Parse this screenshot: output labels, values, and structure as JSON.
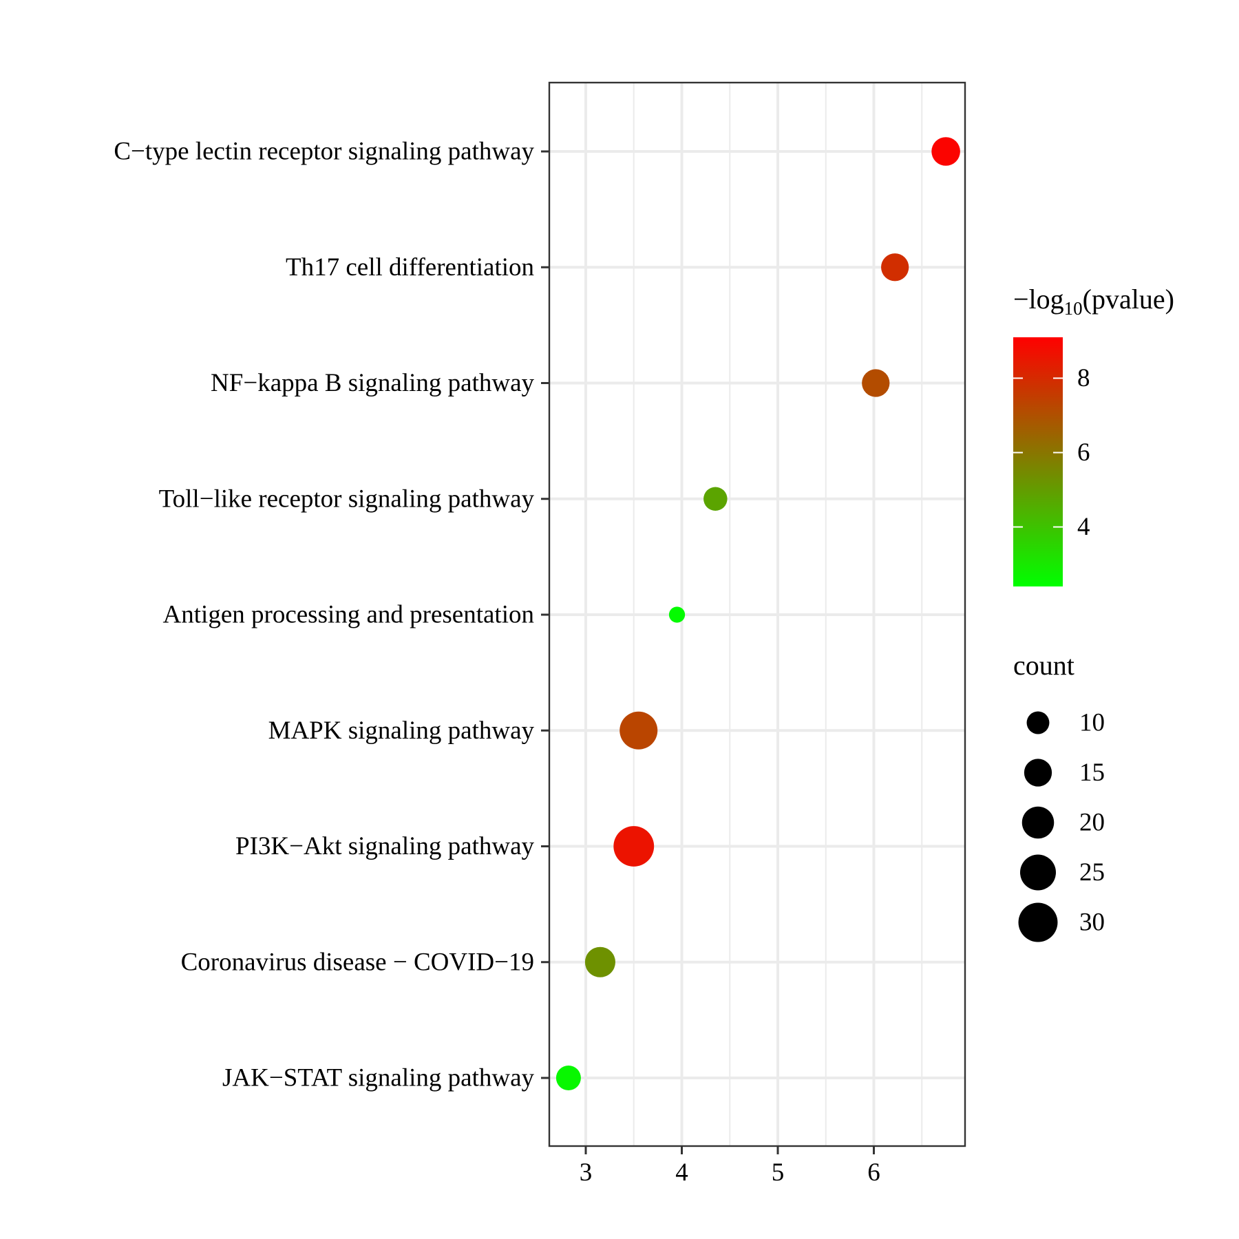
{
  "chart_data": {
    "type": "scatter",
    "title": "",
    "xlabel": "",
    "ylabel": "",
    "xlim": [
      2.62,
      6.95
    ],
    "x_ticks": [
      3,
      4,
      5,
      6
    ],
    "x_tick_labels": [
      "3",
      "4",
      "5",
      "6"
    ],
    "grid": true,
    "legend_position": "right",
    "categories": [
      "C−type lectin receptor signaling pathway",
      "Th17 cell differentiation",
      "NF−kappa B signaling pathway",
      "Toll−like receptor signaling pathway",
      "Antigen processing and presentation",
      "MAPK signaling pathway",
      "PI3K−Akt signaling pathway",
      "Coronavirus disease − COVID−19",
      "JAK−STAT signaling pathway"
    ],
    "points": [
      {
        "category": "C−type lectin receptor signaling pathway",
        "x": 6.75,
        "count": 16,
        "neg_log10_pvalue": 9.0
      },
      {
        "category": "Th17 cell differentiation",
        "x": 6.22,
        "count": 15,
        "neg_log10_pvalue": 7.9
      },
      {
        "category": "NF−kappa B signaling pathway",
        "x": 6.02,
        "count": 15,
        "neg_log10_pvalue": 7.1
      },
      {
        "category": "Toll−like receptor signaling pathway",
        "x": 4.35,
        "count": 11,
        "neg_log10_pvalue": 4.8
      },
      {
        "category": "Antigen processing and presentation",
        "x": 3.95,
        "count": 5,
        "neg_log10_pvalue": 2.5
      },
      {
        "category": "MAPK signaling pathway",
        "x": 3.55,
        "count": 28,
        "neg_log10_pvalue": 7.3
      },
      {
        "category": "PI3K−Akt signaling pathway",
        "x": 3.5,
        "count": 32,
        "neg_log10_pvalue": 8.6
      },
      {
        "category": "Coronavirus disease − COVID−19",
        "x": 3.15,
        "count": 18,
        "neg_log10_pvalue": 5.3
      },
      {
        "category": "JAK−STAT signaling pathway",
        "x": 2.82,
        "count": 12,
        "neg_log10_pvalue": 2.6
      }
    ],
    "color_legend": {
      "title_main": "−log",
      "title_sub": "10",
      "title_tail": "(pvalue)",
      "min": 2.4,
      "max": 9.1,
      "ticks": [
        4,
        6,
        8
      ],
      "tick_labels": [
        "4",
        "6",
        "8"
      ],
      "low_color": "#00ff00",
      "high_color": "#ff0000"
    },
    "size_legend": {
      "title": "count",
      "values": [
        10,
        15,
        20,
        25,
        30
      ],
      "labels": [
        "10",
        "15",
        "20",
        "25",
        "30"
      ]
    }
  }
}
